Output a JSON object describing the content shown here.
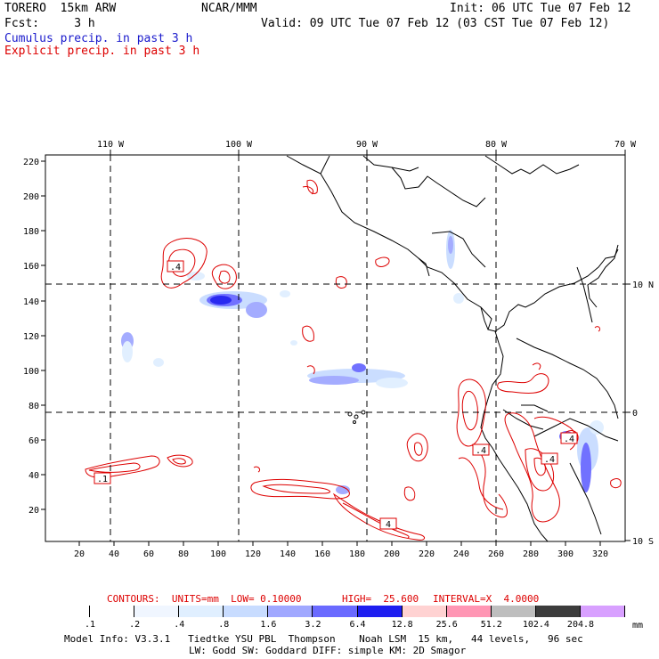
{
  "header": {
    "model": "TORERO  15km ARW",
    "org": "NCAR/MMM",
    "init": "Init: 06 UTC Tue 07 Feb 12",
    "fcst": "Fcst:     3 h",
    "valid": "Valid: 09 UTC Tue 07 Feb 12 (03 CST Tue 07 Feb 12)",
    "cumulus": "Cumulus precip. in past 3 h",
    "explicit": "Explicit precip. in past 3 h"
  },
  "top_axis": {
    "labels": [
      "110 W",
      "100 W",
      "90 W",
      "80 W",
      "70 W"
    ]
  },
  "right_axis": {
    "labels": [
      "10 N",
      "0",
      "10 S"
    ]
  },
  "left_axis": {
    "labels": [
      "220",
      "200",
      "180",
      "160",
      "140",
      "120",
      "100",
      "80",
      "60",
      "40",
      "20"
    ]
  },
  "bottom_axis": {
    "labels": [
      "20",
      "40",
      "60",
      "80",
      "100",
      "120",
      "140",
      "160",
      "180",
      "200",
      "220",
      "240",
      "260",
      "280",
      "300",
      "320"
    ]
  },
  "contour_labels": [
    ".4",
    ".1",
    ".4",
    ".4",
    ".4",
    "4"
  ],
  "contour_info": {
    "contours": "CONTOURS:  UNITS=mm  LOW= 0.10000",
    "high": "HIGH=  25.600",
    "interval": "INTERVAL=X  4.0000"
  },
  "colorbar": {
    "labels": [
      ".1",
      ".2",
      ".4",
      ".8",
      "1.6",
      "3.2",
      "6.4",
      "12.8",
      "25.6",
      "51.2",
      "102.4",
      "204.8"
    ],
    "unit": "mm",
    "colors": [
      "#ffffff",
      "#ffffff",
      "#f0f6ff",
      "#e0efff",
      "#c8dcff",
      "#a0a8ff",
      "#6a6aff",
      "#1e1ef0",
      "#ffd2d2",
      "#ff96b4",
      "#bebebe",
      "#3c3c3c",
      "#d8a0ff"
    ]
  },
  "footer": {
    "line1": "Model Info: V3.3.1   Tiedtke YSU PBL  Thompson    Noah LSM  15 km,   44 levels,   96 sec",
    "line2": "LW: Godd SW: Goddard DIFF: simple KM: 2D Smagor"
  }
}
